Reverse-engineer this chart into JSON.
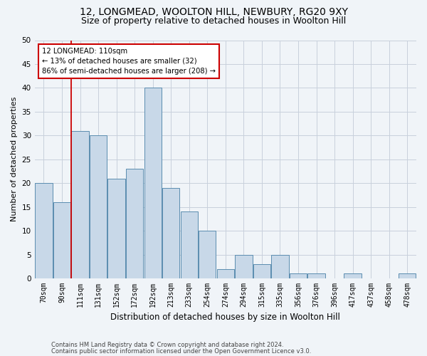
{
  "title1": "12, LONGMEAD, WOOLTON HILL, NEWBURY, RG20 9XY",
  "title2": "Size of property relative to detached houses in Woolton Hill",
  "xlabel": "Distribution of detached houses by size in Woolton Hill",
  "ylabel": "Number of detached properties",
  "categories": [
    "70sqm",
    "90sqm",
    "111sqm",
    "131sqm",
    "152sqm",
    "172sqm",
    "192sqm",
    "213sqm",
    "233sqm",
    "254sqm",
    "274sqm",
    "294sqm",
    "315sqm",
    "335sqm",
    "356sqm",
    "376sqm",
    "396sqm",
    "417sqm",
    "437sqm",
    "458sqm",
    "478sqm"
  ],
  "values": [
    20,
    16,
    31,
    30,
    21,
    23,
    40,
    19,
    14,
    10,
    2,
    5,
    3,
    5,
    1,
    1,
    0,
    1,
    0,
    0,
    1
  ],
  "bar_color": "#c8d8e8",
  "bar_edge_color": "#5b8db0",
  "annotation_text": "12 LONGMEAD: 110sqm\n← 13% of detached houses are smaller (32)\n86% of semi-detached houses are larger (208) →",
  "annotation_box_color": "#ffffff",
  "annotation_border_color": "#cc0000",
  "vline_color": "#cc0000",
  "ylim": [
    0,
    50
  ],
  "yticks": [
    0,
    5,
    10,
    15,
    20,
    25,
    30,
    35,
    40,
    45,
    50
  ],
  "footer1": "Contains HM Land Registry data © Crown copyright and database right 2024.",
  "footer2": "Contains public sector information licensed under the Open Government Licence v3.0.",
  "bg_color": "#f0f4f8",
  "grid_color": "#c8d0dc",
  "title1_fontsize": 10,
  "title2_fontsize": 9,
  "xlabel_fontsize": 8.5,
  "ylabel_fontsize": 8,
  "tick_fontsize": 7,
  "footer_fontsize": 6,
  "bar_width": 0.95
}
